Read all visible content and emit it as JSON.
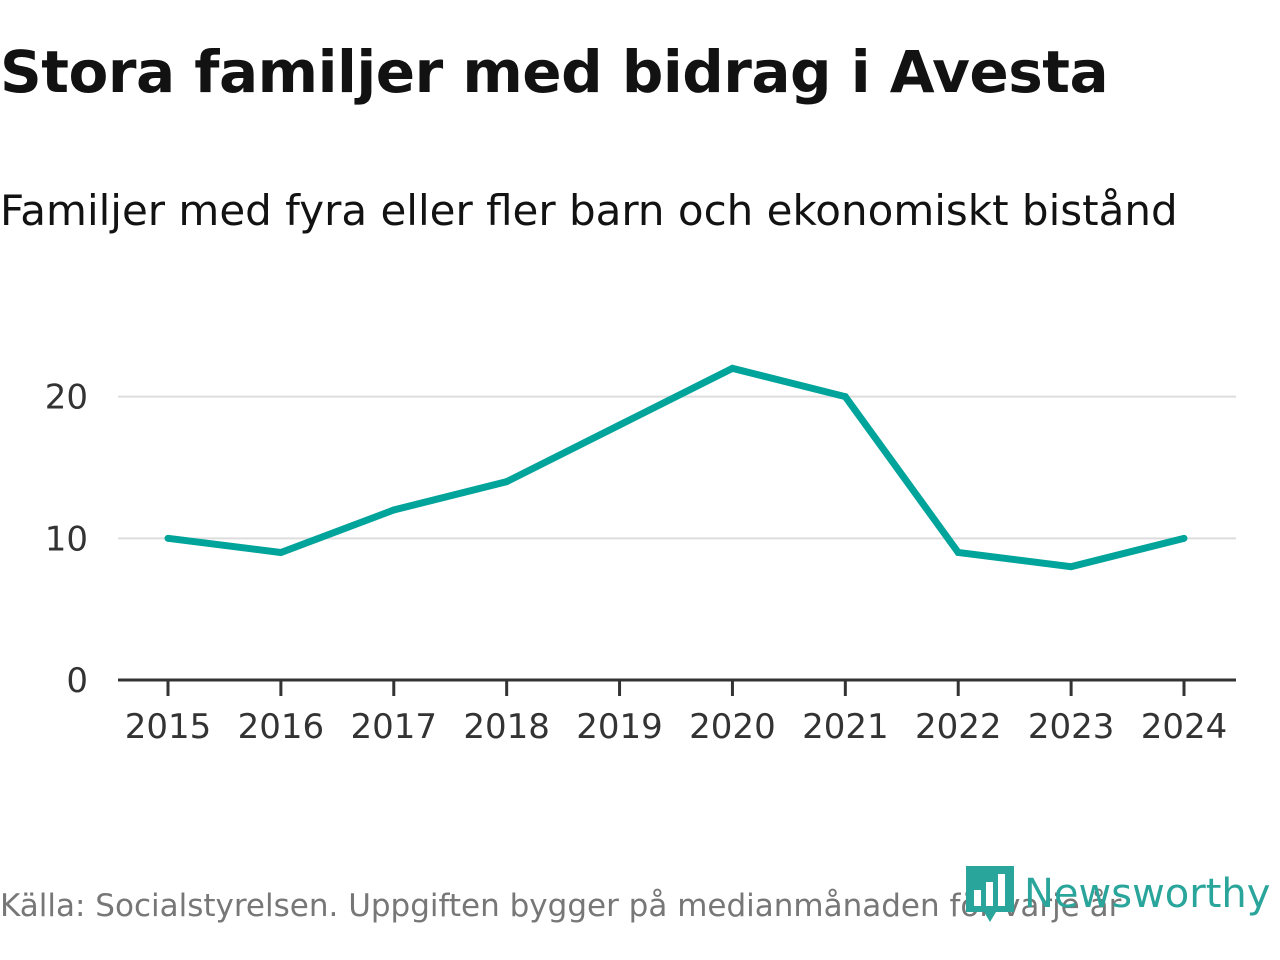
{
  "chart_data": {
    "type": "line",
    "title": "Stora familjer med bidrag i Avesta",
    "subtitle": "Familjer med fyra eller fler barn och ekonomiskt bistånd",
    "x": [
      2015,
      2016,
      2017,
      2018,
      2019,
      2020,
      2021,
      2022,
      2023,
      2024
    ],
    "x_tick_labels": [
      "2015",
      "2016",
      "2017",
      "2018",
      "2019",
      "2020",
      "2021",
      "2022",
      "2023",
      "2024"
    ],
    "series": [
      {
        "name": "Familjer med fyra eller fler barn och ekonomiskt bistånd",
        "values": [
          10,
          9,
          12,
          14,
          18,
          22,
          20,
          9,
          8,
          10
        ],
        "color": "#00a49a"
      }
    ],
    "ylim": [
      0,
      24
    ],
    "y_ticks": [
      0,
      10,
      20
    ],
    "y_tick_labels": [
      "0",
      "10",
      "20"
    ],
    "grid": true,
    "xlabel": "",
    "ylabel": ""
  },
  "footer": {
    "source": "Källa: Socialstyrelsen. Uppgiften bygger på medianmånaden för varje år",
    "brand": "Newsworthy",
    "brand_color": "#2aa59b"
  }
}
